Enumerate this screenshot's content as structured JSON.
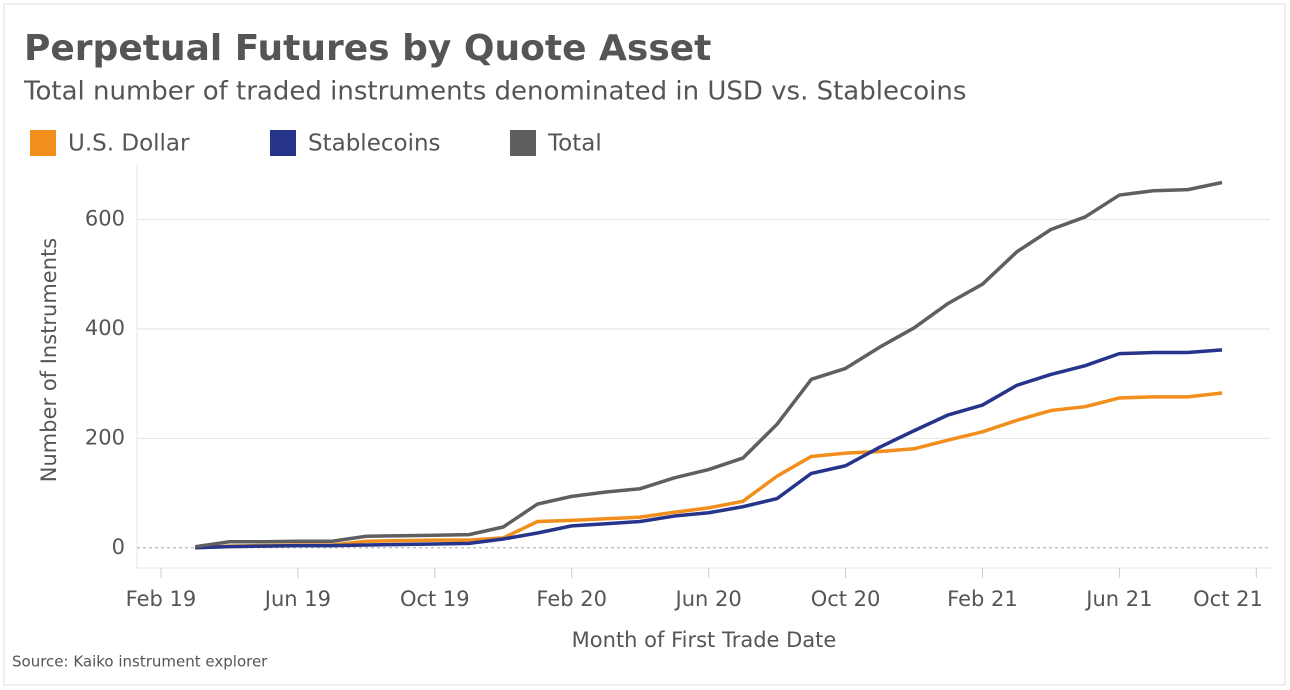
{
  "chart_data": {
    "type": "line",
    "title": "Perpetual Futures by Quote Asset",
    "subtitle": "Total number of traded instruments denominated in USD vs. Stablecoins",
    "x_label": "Month of First Trade Date",
    "y_label": "Number of Instruments",
    "source": "Source: Kaiko instrument explorer",
    "x": [
      1,
      2,
      3,
      4,
      5,
      6,
      7,
      8,
      9,
      10,
      11,
      12,
      13,
      14,
      15,
      16,
      17,
      18,
      19,
      20,
      21,
      22,
      23,
      24,
      25,
      26,
      27,
      28,
      29,
      30,
      31
    ],
    "series": [
      {
        "name": "U.S. Dollar",
        "color": "#f28e1c",
        "values": [
          0,
          3,
          4,
          5,
          5,
          12,
          13,
          14,
          14,
          18,
          48,
          50,
          53,
          56,
          65,
          73,
          85,
          131,
          167,
          173,
          176,
          181,
          197,
          212,
          233,
          251,
          258,
          274,
          276,
          276,
          283
        ]
      },
      {
        "name": "Stablecoins",
        "color": "#27348b",
        "values": [
          0,
          2,
          3,
          4,
          4,
          5,
          6,
          7,
          8,
          16,
          27,
          40,
          44,
          48,
          58,
          64,
          75,
          90,
          136,
          150,
          184,
          214,
          243,
          261,
          297,
          317,
          333,
          355,
          357,
          357,
          362
        ]
      },
      {
        "name": "Total",
        "color": "#5f5f5f",
        "values": [
          2,
          11,
          11,
          12,
          12,
          21,
          22,
          23,
          24,
          38,
          80,
          94,
          102,
          108,
          128,
          143,
          164,
          226,
          308,
          328,
          367,
          402,
          447,
          482,
          541,
          582,
          605,
          645,
          653,
          655,
          668
        ]
      }
    ],
    "xlim": [
      -0.7,
      32.4
    ],
    "xticks": [
      {
        "value": 0,
        "label": "Feb 19"
      },
      {
        "value": 4,
        "label": "Jun 19"
      },
      {
        "value": 8,
        "label": "Oct 19"
      },
      {
        "value": 12,
        "label": "Feb 20"
      },
      {
        "value": 16,
        "label": "Jun 20"
      },
      {
        "value": 20,
        "label": "Oct 20"
      },
      {
        "value": 24,
        "label": "Feb 21"
      },
      {
        "value": 28,
        "label": "Jun 21"
      },
      {
        "value": 32,
        "label": "Oct 21"
      }
    ],
    "ylim": [
      -37,
      700
    ],
    "yticks": [
      0,
      200,
      400,
      600
    ],
    "grid": true
  }
}
